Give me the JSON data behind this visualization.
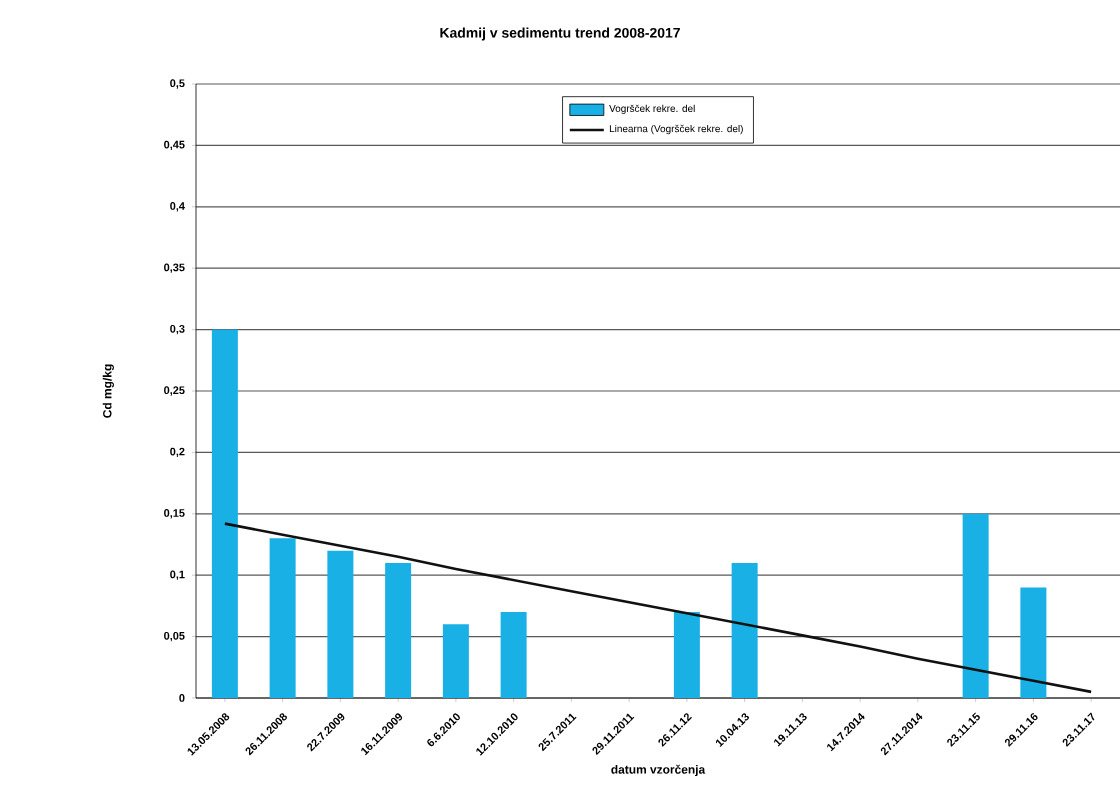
{
  "chart_data": {
    "type": "bar",
    "title": "Kadmij v sedimentu trend 2008-2017",
    "xlabel": "datum vzorčenja",
    "ylabel": "Cd mg/kg",
    "categories": [
      "13.05.2008",
      "26.11.2008",
      "22.7.2009",
      "16.11.2009",
      "6.6.2010",
      "12.10.2010",
      "25.7.2011",
      "29.11.2011",
      "26.11.12",
      "10.04.13",
      "19.11.13",
      "14.7.2014",
      "27.11.2014",
      "23.11.15",
      "29.11.16",
      "23.11.17"
    ],
    "series": [
      {
        "name": "Vogršček rekre. del",
        "color": "#19b0e6",
        "values": [
          0.3,
          0.13,
          0.12,
          0.11,
          0.06,
          0.07,
          null,
          null,
          0.07,
          0.11,
          null,
          null,
          null,
          0.15,
          0.09,
          null
        ]
      },
      {
        "name": "Linearna (Vogršček rekre. del)",
        "type": "line",
        "color": "#111111",
        "values": [
          0.142,
          0.133,
          0.124,
          0.115,
          0.105,
          0.096,
          0.087,
          0.078,
          0.069,
          0.06,
          0.051,
          0.042,
          0.032,
          0.023,
          0.014,
          0.005
        ]
      }
    ],
    "ylim": [
      0,
      0.5
    ],
    "yticks": [
      {
        "value": 0,
        "label": "0"
      },
      {
        "value": 0.05,
        "label": "0,05"
      },
      {
        "value": 0.1,
        "label": "0,1"
      },
      {
        "value": 0.15,
        "label": "0,15"
      },
      {
        "value": 0.2,
        "label": "0,2"
      },
      {
        "value": 0.25,
        "label": "0,25"
      },
      {
        "value": 0.3,
        "label": "0,3"
      },
      {
        "value": 0.35,
        "label": "0,35"
      },
      {
        "value": 0.4,
        "label": "0,4"
      },
      {
        "value": 0.45,
        "label": "0,45"
      },
      {
        "value": 0.5,
        "label": "0,5"
      }
    ],
    "grid": "y",
    "legend": "top"
  }
}
